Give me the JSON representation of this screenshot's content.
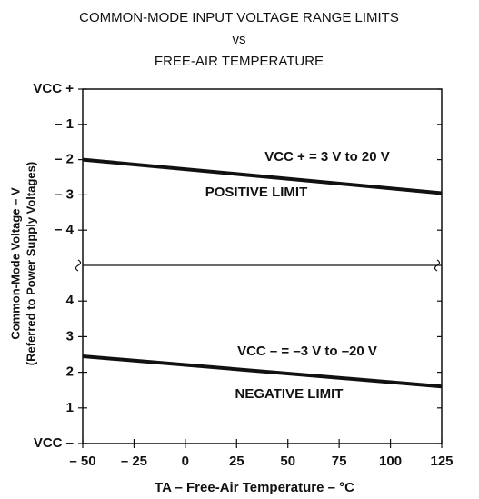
{
  "chart_data": [
    {
      "type": "line",
      "title": [
        "COMMON-MODE INPUT VOLTAGE RANGE LIMITS",
        "vs",
        "FREE-AIR TEMPERATURE"
      ],
      "ylabel": [
        "Common-Mode Voltage – V",
        "(Referred to Power Supply Voltages)"
      ],
      "x": [
        -50,
        125
      ],
      "xlim": [
        -50,
        125
      ],
      "series": [
        {
          "color": "#111111",
          "values": [
            -2.0,
            -2.95
          ]
        }
      ],
      "ylim": [
        -5,
        0
      ],
      "yticks": [
        {
          "value": 0,
          "label": "VCC +"
        },
        {
          "value": -1,
          "label": "– 1"
        },
        {
          "value": -2,
          "label": "– 2"
        },
        {
          "value": -3,
          "label": "– 3"
        },
        {
          "value": -4,
          "label": "– 4"
        }
      ],
      "annotations": [
        "VCC +  =  3 V to 20 V",
        "POSITIVE LIMIT"
      ]
    },
    {
      "type": "line",
      "xlabel": "TA – Free-Air Temperature – °C",
      "x": [
        -50,
        125
      ],
      "xlim": [
        -50,
        125
      ],
      "xticks": [
        {
          "value": -50,
          "label": "– 50"
        },
        {
          "value": -25,
          "label": "– 25"
        },
        0,
        25,
        50,
        75,
        100,
        125
      ],
      "series": [
        {
          "color": "#111111",
          "values": [
            2.45,
            1.6
          ]
        }
      ],
      "ylim": [
        0,
        5
      ],
      "yticks": [
        {
          "value": 0,
          "label": "VCC –"
        },
        1,
        2,
        3,
        4
      ],
      "annotations": [
        "VCC –  =  –3 V to –20 V",
        "NEGATIVE LIMIT"
      ]
    }
  ]
}
